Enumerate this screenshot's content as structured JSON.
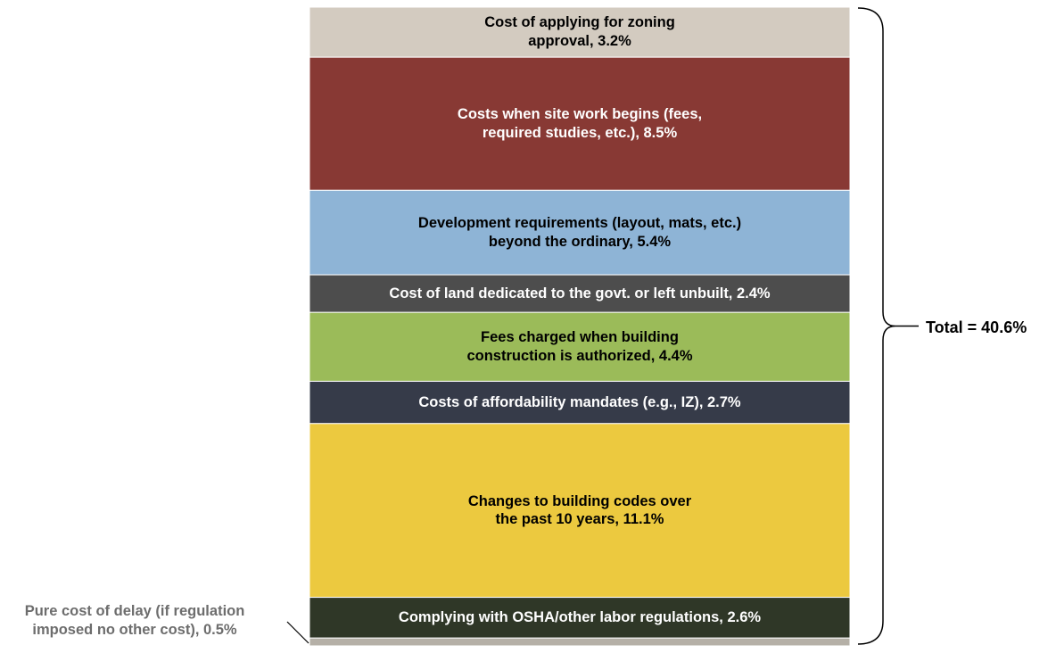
{
  "chart_data": {
    "type": "bar",
    "subtype": "single stacked column, segments listed top to bottom",
    "segments": [
      {
        "label": "Cost of applying for zoning\napproval, 3.2%",
        "value": 3.2,
        "color": "#d3cbc0",
        "text_color": "#000000"
      },
      {
        "label": "Costs when site work begins (fees,\nrequired studies, etc.), 8.5%",
        "value": 8.5,
        "color": "#883934",
        "text_color": "#ffffff"
      },
      {
        "label": "Development requirements (layout, mats, etc.)\nbeyond the ordinary, 5.4%",
        "value": 5.4,
        "color": "#8eb4d6",
        "text_color": "#000000"
      },
      {
        "label": "Cost of land dedicated to the govt. or left unbuilt, 2.4%",
        "value": 2.4,
        "color": "#4d4d4d",
        "text_color": "#ffffff"
      },
      {
        "label": "Fees charged when building\nconstruction is authorized, 4.4%",
        "value": 4.4,
        "color": "#9bbb59",
        "text_color": "#000000"
      },
      {
        "label": "Costs of affordability mandates (e.g., IZ), 2.7%",
        "value": 2.7,
        "color": "#363b49",
        "text_color": "#ffffff"
      },
      {
        "label": "Changes to building codes over\nthe past 10 years, 11.1%",
        "value": 11.1,
        "color": "#ecc93f",
        "text_color": "#000000"
      },
      {
        "label": "Complying with OSHA/other labor regulations, 2.6%",
        "value": 2.6,
        "color": "#2f3727",
        "text_color": "#ffffff"
      },
      {
        "label": "",
        "value": 0.5,
        "color": "#b5b0a7",
        "text_color": "#000000"
      }
    ],
    "total_label": "Total = 40.6%",
    "delay_label": "Pure cost of delay (if regulation\nimposed no other cost), 0.5%"
  }
}
